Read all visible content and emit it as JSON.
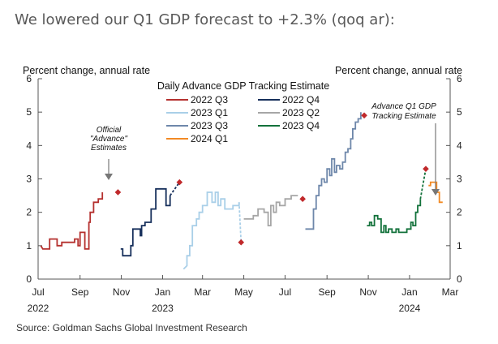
{
  "headline": "We lowered our Q1 GDP forecast to +2.3% (qoq ar):",
  "source": "Source: Goldman Sachs Global Investment Research",
  "chart_data": {
    "type": "line",
    "title": "Daily Advance GDP Tracking Estimate",
    "ylabel_left": "Percent change, annual rate",
    "ylabel_right": "Percent change, annual rate",
    "ylim": [
      0,
      6
    ],
    "y_ticks": [
      "0",
      "1",
      "2",
      "3",
      "4",
      "5",
      "6"
    ],
    "xlim": [
      "2022-07-01",
      "2024-03-01"
    ],
    "x_ticks": [
      {
        "label": "Jul",
        "date": "2022-07-01"
      },
      {
        "label": "Sep",
        "date": "2022-09-01"
      },
      {
        "label": "Nov",
        "date": "2022-11-01"
      },
      {
        "label": "Jan",
        "date": "2023-01-01"
      },
      {
        "label": "Mar",
        "date": "2023-03-01"
      },
      {
        "label": "May",
        "date": "2023-05-01"
      },
      {
        "label": "Jul",
        "date": "2023-07-01"
      },
      {
        "label": "Sep",
        "date": "2023-09-01"
      },
      {
        "label": "Nov",
        "date": "2023-11-01"
      },
      {
        "label": "Jan",
        "date": "2024-01-01"
      },
      {
        "label": "Mar",
        "date": "2024-03-01"
      }
    ],
    "year_labels": [
      {
        "label": "2022",
        "date": "2022-07-01"
      },
      {
        "label": "2023",
        "date": "2023-01-01"
      },
      {
        "label": "2024",
        "date": "2024-01-01"
      }
    ],
    "grid": false,
    "legend_placement": "top-center",
    "series": [
      {
        "name": "2022 Q3",
        "color": "#b5312f",
        "dashed_tail": false,
        "points": [
          [
            "2022-07-05",
            1.0
          ],
          [
            "2022-07-08",
            0.9
          ],
          [
            "2022-07-18",
            0.9
          ],
          [
            "2022-07-18",
            1.2
          ],
          [
            "2022-07-29",
            1.2
          ],
          [
            "2022-07-29",
            1.0
          ],
          [
            "2022-08-05",
            1.0
          ],
          [
            "2022-08-05",
            1.1
          ],
          [
            "2022-08-24",
            1.1
          ],
          [
            "2022-08-24",
            1.2
          ],
          [
            "2022-08-29",
            1.2
          ],
          [
            "2022-08-29",
            1.0
          ],
          [
            "2022-09-01",
            1.0
          ],
          [
            "2022-09-01",
            1.4
          ],
          [
            "2022-09-08",
            1.4
          ],
          [
            "2022-09-08",
            0.9
          ],
          [
            "2022-09-14",
            0.9
          ],
          [
            "2022-09-14",
            1.7
          ],
          [
            "2022-09-16",
            1.7
          ],
          [
            "2022-09-16",
            2.0
          ],
          [
            "2022-09-21",
            2.0
          ],
          [
            "2022-09-21",
            2.3
          ],
          [
            "2022-09-28",
            2.3
          ],
          [
            "2022-09-28",
            2.4
          ],
          [
            "2022-10-04",
            2.4
          ],
          [
            "2022-10-04",
            2.6
          ]
        ],
        "official": {
          "date": "2022-10-27",
          "value": 2.6
        }
      },
      {
        "name": "2022 Q4",
        "color": "#162f5b",
        "dashed_tail": true,
        "points": [
          [
            "2022-10-31",
            0.9
          ],
          [
            "2022-11-03",
            0.9
          ],
          [
            "2022-11-03",
            0.7
          ],
          [
            "2022-11-15",
            0.7
          ],
          [
            "2022-11-15",
            1.0
          ],
          [
            "2022-11-18",
            1.0
          ],
          [
            "2022-11-18",
            1.5
          ],
          [
            "2022-11-29",
            1.5
          ],
          [
            "2022-11-29",
            1.3
          ],
          [
            "2022-12-01",
            1.3
          ],
          [
            "2022-12-01",
            1.6
          ],
          [
            "2022-12-06",
            1.6
          ],
          [
            "2022-12-06",
            1.7
          ],
          [
            "2022-12-15",
            1.7
          ],
          [
            "2022-12-15",
            2.1
          ],
          [
            "2022-12-22",
            2.1
          ],
          [
            "2022-12-22",
            2.7
          ],
          [
            "2023-01-06",
            2.7
          ],
          [
            "2023-01-06",
            2.2
          ],
          [
            "2023-01-12",
            2.2
          ],
          [
            "2023-01-12",
            2.5
          ]
        ],
        "official": {
          "date": "2023-01-26",
          "value": 2.9
        }
      },
      {
        "name": "2023 Q1",
        "color": "#a9cfe8",
        "dashed_tail": true,
        "points": [
          [
            "2023-02-01",
            0.3
          ],
          [
            "2023-02-06",
            0.4
          ],
          [
            "2023-02-06",
            0.7
          ],
          [
            "2023-02-10",
            0.7
          ],
          [
            "2023-02-10",
            1.0
          ],
          [
            "2023-02-14",
            1.0
          ],
          [
            "2023-02-14",
            1.6
          ],
          [
            "2023-02-20",
            1.6
          ],
          [
            "2023-02-20",
            1.8
          ],
          [
            "2023-02-24",
            1.8
          ],
          [
            "2023-02-24",
            2.0
          ],
          [
            "2023-03-01",
            2.0
          ],
          [
            "2023-03-01",
            2.2
          ],
          [
            "2023-03-08",
            2.2
          ],
          [
            "2023-03-08",
            2.6
          ],
          [
            "2023-03-15",
            2.6
          ],
          [
            "2023-03-15",
            2.3
          ],
          [
            "2023-03-20",
            2.3
          ],
          [
            "2023-03-20",
            2.6
          ],
          [
            "2023-03-24",
            2.6
          ],
          [
            "2023-03-24",
            2.2
          ],
          [
            "2023-03-28",
            2.2
          ],
          [
            "2023-03-28",
            2.4
          ],
          [
            "2023-04-03",
            2.4
          ],
          [
            "2023-04-03",
            2.1
          ],
          [
            "2023-04-15",
            2.1
          ],
          [
            "2023-04-15",
            2.2
          ],
          [
            "2023-04-24",
            2.2
          ],
          [
            "2023-04-24",
            2.3
          ]
        ],
        "official": {
          "date": "2023-04-27",
          "value": 1.1
        }
      },
      {
        "name": "2023 Q2",
        "color": "#a6a6a6",
        "dashed_tail": false,
        "points": [
          [
            "2023-05-01",
            1.8
          ],
          [
            "2023-05-15",
            1.8
          ],
          [
            "2023-05-15",
            1.9
          ],
          [
            "2023-05-22",
            1.9
          ],
          [
            "2023-05-22",
            2.1
          ],
          [
            "2023-05-31",
            2.1
          ],
          [
            "2023-05-31",
            2.0
          ],
          [
            "2023-06-06",
            2.0
          ],
          [
            "2023-06-06",
            1.6
          ],
          [
            "2023-06-10",
            1.6
          ],
          [
            "2023-06-10",
            2.2
          ],
          [
            "2023-06-14",
            2.2
          ],
          [
            "2023-06-14",
            2.0
          ],
          [
            "2023-06-18",
            2.0
          ],
          [
            "2023-06-18",
            2.3
          ],
          [
            "2023-06-23",
            2.3
          ],
          [
            "2023-06-23",
            2.2
          ],
          [
            "2023-07-01",
            2.2
          ],
          [
            "2023-07-01",
            2.4
          ],
          [
            "2023-07-10",
            2.4
          ],
          [
            "2023-07-10",
            2.5
          ],
          [
            "2023-07-20",
            2.5
          ]
        ],
        "official": {
          "date": "2023-07-27",
          "value": 2.4
        }
      },
      {
        "name": "2023 Q3",
        "color": "#6e87aa",
        "dashed_tail": false,
        "points": [
          [
            "2023-07-31",
            1.5
          ],
          [
            "2023-08-12",
            1.5
          ],
          [
            "2023-08-12",
            2.1
          ],
          [
            "2023-08-16",
            2.1
          ],
          [
            "2023-08-16",
            2.5
          ],
          [
            "2023-08-20",
            2.5
          ],
          [
            "2023-08-20",
            2.8
          ],
          [
            "2023-08-24",
            2.8
          ],
          [
            "2023-08-24",
            3.0
          ],
          [
            "2023-08-28",
            3.0
          ],
          [
            "2023-08-28",
            2.9
          ],
          [
            "2023-09-01",
            2.9
          ],
          [
            "2023-09-01",
            3.3
          ],
          [
            "2023-09-05",
            3.3
          ],
          [
            "2023-09-05",
            3.1
          ],
          [
            "2023-09-08",
            3.1
          ],
          [
            "2023-09-08",
            3.6
          ],
          [
            "2023-09-12",
            3.6
          ],
          [
            "2023-09-12",
            3.2
          ],
          [
            "2023-09-15",
            3.2
          ],
          [
            "2023-09-15",
            3.4
          ],
          [
            "2023-09-20",
            3.4
          ],
          [
            "2023-09-20",
            3.3
          ],
          [
            "2023-09-24",
            3.3
          ],
          [
            "2023-09-24",
            3.5
          ],
          [
            "2023-09-28",
            3.5
          ],
          [
            "2023-09-28",
            3.8
          ],
          [
            "2023-10-02",
            3.8
          ],
          [
            "2023-10-02",
            3.9
          ],
          [
            "2023-10-06",
            3.9
          ],
          [
            "2023-10-06",
            4.2
          ],
          [
            "2023-10-09",
            4.2
          ],
          [
            "2023-10-09",
            4.5
          ],
          [
            "2023-10-13",
            4.5
          ],
          [
            "2023-10-13",
            4.7
          ],
          [
            "2023-10-17",
            4.7
          ],
          [
            "2023-10-17",
            4.8
          ],
          [
            "2023-10-21",
            4.8
          ],
          [
            "2023-10-21",
            5.0
          ]
        ],
        "official": {
          "date": "2023-10-26",
          "value": 4.9
        }
      },
      {
        "name": "2023 Q4",
        "color": "#13723b",
        "dashed_tail": true,
        "points": [
          [
            "2023-10-30",
            1.6
          ],
          [
            "2023-11-03",
            1.6
          ],
          [
            "2023-11-03",
            1.7
          ],
          [
            "2023-11-06",
            1.7
          ],
          [
            "2023-11-06",
            1.6
          ],
          [
            "2023-11-10",
            1.6
          ],
          [
            "2023-11-10",
            1.9
          ],
          [
            "2023-11-15",
            1.9
          ],
          [
            "2023-11-15",
            1.8
          ],
          [
            "2023-11-20",
            1.8
          ],
          [
            "2023-11-20",
            1.4
          ],
          [
            "2023-11-24",
            1.4
          ],
          [
            "2023-11-24",
            1.6
          ],
          [
            "2023-11-27",
            1.6
          ],
          [
            "2023-11-27",
            1.4
          ],
          [
            "2023-12-01",
            1.4
          ],
          [
            "2023-12-01",
            1.5
          ],
          [
            "2023-12-06",
            1.5
          ],
          [
            "2023-12-06",
            1.4
          ],
          [
            "2023-12-12",
            1.4
          ],
          [
            "2023-12-12",
            1.5
          ],
          [
            "2023-12-16",
            1.5
          ],
          [
            "2023-12-16",
            1.4
          ],
          [
            "2023-12-28",
            1.4
          ],
          [
            "2023-12-28",
            1.5
          ],
          [
            "2024-01-03",
            1.5
          ],
          [
            "2024-01-03",
            1.7
          ],
          [
            "2024-01-06",
            1.7
          ],
          [
            "2024-01-06",
            1.6
          ],
          [
            "2024-01-10",
            1.6
          ],
          [
            "2024-01-10",
            2.0
          ],
          [
            "2024-01-13",
            2.0
          ],
          [
            "2024-01-13",
            2.2
          ],
          [
            "2024-01-17",
            2.2
          ],
          [
            "2024-01-17",
            2.4
          ]
        ],
        "official": {
          "date": "2024-01-25",
          "value": 3.3
        }
      },
      {
        "name": "2024 Q1",
        "color": "#f28a24",
        "dashed_tail": false,
        "points": [
          [
            "2024-01-29",
            2.8
          ],
          [
            "2024-02-01",
            2.8
          ],
          [
            "2024-02-01",
            2.9
          ],
          [
            "2024-02-10",
            2.9
          ],
          [
            "2024-02-10",
            2.6
          ],
          [
            "2024-02-14",
            2.6
          ],
          [
            "2024-02-14",
            2.3
          ],
          [
            "2024-02-19",
            2.3
          ]
        ],
        "official": null
      }
    ],
    "annotations": [
      {
        "id": "official",
        "lines": [
          "Official",
          "\"Advance\"",
          "Estimates"
        ]
      },
      {
        "id": "q1",
        "lines": [
          "Advance Q1 GDP",
          "Tracking Estimate"
        ]
      }
    ]
  }
}
